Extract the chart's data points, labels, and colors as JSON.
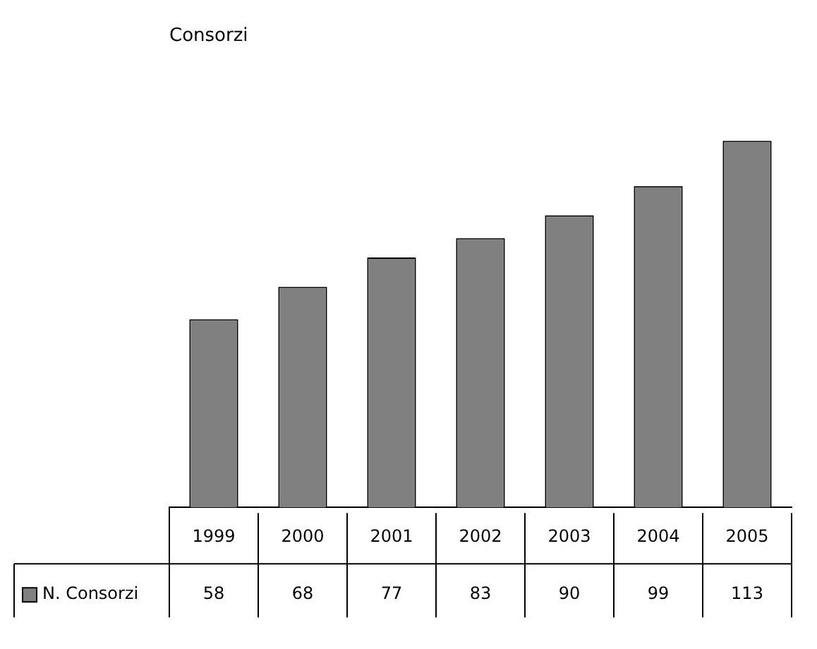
{
  "chart_data": {
    "type": "bar",
    "title": "Consorzi",
    "categories": [
      "1999",
      "2000",
      "2001",
      "2002",
      "2003",
      "2004",
      "2005"
    ],
    "series": [
      {
        "name": "N. Consorzi",
        "color": "#808080",
        "values": [
          58,
          68,
          77,
          83,
          90,
          99,
          113
        ]
      }
    ],
    "data_labels": true,
    "legend": "bottom left",
    "grid": false
  }
}
